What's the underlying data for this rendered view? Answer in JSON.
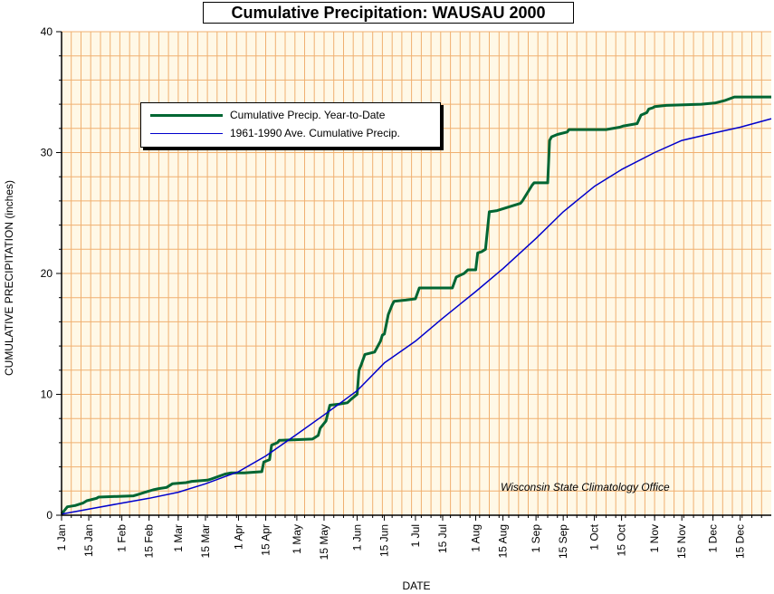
{
  "chart_data": {
    "type": "line",
    "title": "Cumulative Precipitation: WAUSAU 2000",
    "xlabel": "DATE",
    "ylabel": "CUMULATIVE PRECIPITATION (inches)",
    "credit": "Wisconsin State Climatology Office",
    "ylim": [
      0,
      40
    ],
    "yticks": [
      "0",
      "10",
      "20",
      "30",
      "40"
    ],
    "x_unit": "day of year",
    "xlim": [
      1,
      366
    ],
    "xtick_days": [
      1,
      15,
      32,
      46,
      61,
      75,
      92,
      106,
      122,
      136,
      153,
      167,
      183,
      197,
      214,
      228,
      245,
      259,
      275,
      289,
      306,
      320,
      336,
      350
    ],
    "xtick_labels": [
      "1 Jan",
      "15 Jan",
      "1 Feb",
      "15 Feb",
      "1 Mar",
      "15 Mar",
      "1 Apr",
      "15 Apr",
      "1 May",
      "15 May",
      "1 Jun",
      "15 Jun",
      "1 Jul",
      "15 Jul",
      "1 Aug",
      "15 Aug",
      "1 Sep",
      "15 Sep",
      "1 Oct",
      "15 Oct",
      "1 Nov",
      "15 Nov",
      "1 Dec",
      "15 Dec"
    ],
    "grid": true,
    "legend_position": "top-left",
    "colors": {
      "background": "#fff8e6",
      "grid": "#f0b070"
    },
    "series": [
      {
        "name": "Cumulative Precip. Year-to-Date",
        "color": "#006633",
        "x": [
          1,
          3,
          4,
          8,
          12,
          14,
          19,
          20,
          38,
          40,
          44,
          48,
          51,
          55,
          58,
          65,
          68,
          76,
          78,
          85,
          88,
          95,
          104,
          105,
          108,
          109,
          112,
          113,
          114,
          130,
          131,
          133,
          134,
          137,
          139,
          144,
          148,
          150,
          153,
          154,
          155,
          157,
          162,
          165,
          166,
          167,
          169,
          171,
          172,
          178,
          183,
          185,
          202,
          204,
          208,
          210,
          214,
          215,
          217,
          219,
          221,
          225,
          237,
          238,
          243,
          244,
          251,
          252,
          253,
          256,
          261,
          262,
          281,
          288,
          290,
          297,
          299,
          302,
          303,
          305,
          306,
          312,
          330,
          337,
          342,
          347,
          366
        ],
        "values": [
          0.1,
          0.5,
          0.7,
          0.8,
          1.0,
          1.2,
          1.4,
          1.5,
          1.6,
          1.7,
          1.9,
          2.1,
          2.2,
          2.3,
          2.6,
          2.7,
          2.8,
          2.9,
          3.0,
          3.4,
          3.5,
          3.5,
          3.6,
          4.4,
          4.6,
          5.8,
          6.0,
          6.2,
          6.2,
          6.3,
          6.4,
          6.6,
          7.2,
          7.8,
          9.1,
          9.2,
          9.3,
          9.6,
          10.0,
          12.0,
          12.4,
          13.3,
          13.5,
          14.4,
          14.9,
          15.0,
          16.6,
          17.4,
          17.7,
          17.8,
          17.9,
          18.8,
          18.8,
          19.7,
          20.0,
          20.3,
          20.3,
          21.7,
          21.8,
          22.0,
          25.1,
          25.2,
          25.8,
          26.0,
          27.3,
          27.5,
          27.5,
          31.0,
          31.3,
          31.5,
          31.7,
          31.9,
          31.9,
          32.1,
          32.2,
          32.4,
          33.1,
          33.3,
          33.6,
          33.7,
          33.8,
          33.9,
          34.0,
          34.1,
          34.3,
          34.6,
          34.6
        ]
      },
      {
        "name": "1961-1990 Ave. Cumulative Precip.",
        "color": "#0000cc",
        "x": [
          1,
          15,
          32,
          46,
          61,
          75,
          92,
          106,
          122,
          136,
          153,
          167,
          183,
          197,
          214,
          228,
          245,
          259,
          275,
          289,
          306,
          320,
          336,
          350,
          366
        ],
        "values": [
          0.1,
          0.5,
          1.0,
          1.4,
          1.9,
          2.6,
          3.6,
          4.9,
          6.7,
          8.3,
          10.3,
          12.6,
          14.4,
          16.3,
          18.5,
          20.4,
          22.9,
          25.1,
          27.2,
          28.6,
          30.0,
          31.0,
          31.6,
          32.1,
          32.8
        ]
      }
    ]
  }
}
